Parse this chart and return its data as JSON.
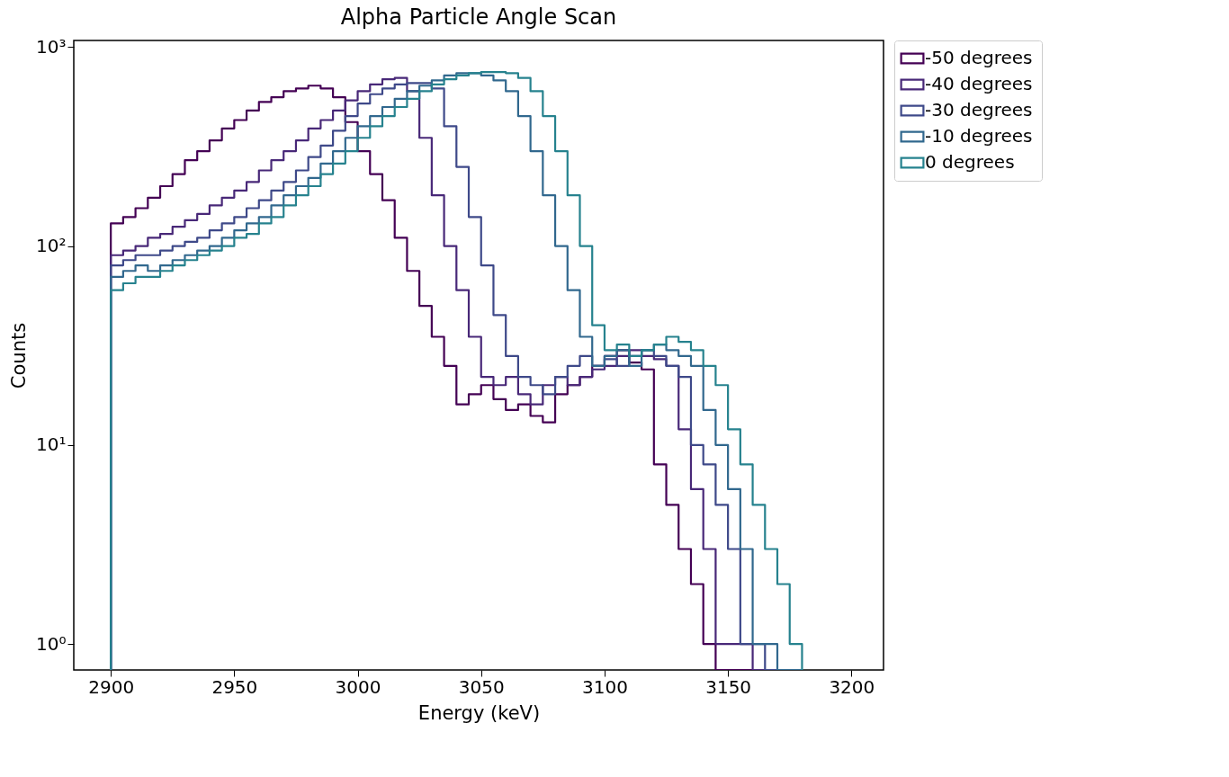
{
  "chart_data": {
    "type": "histogram",
    "title": "Alpha Particle Angle Scan",
    "xlabel": "Energy (keV)",
    "ylabel": "Counts",
    "bins": [
      2900,
      2905,
      2910,
      2915,
      2920,
      2925,
      2930,
      2935,
      2940,
      2945,
      2950,
      2955,
      2960,
      2965,
      2970,
      2975,
      2980,
      2985,
      2990,
      2995,
      3000,
      3005,
      3010,
      3015,
      3020,
      3025,
      3030,
      3035,
      3040,
      3045,
      3050,
      3055,
      3060,
      3065,
      3070,
      3075,
      3080,
      3085,
      3090,
      3095,
      3100,
      3105,
      3110,
      3115,
      3120,
      3125,
      3130,
      3135,
      3140,
      3145,
      3150,
      3155,
      3160,
      3165,
      3170,
      3175,
      3180
    ],
    "series": [
      {
        "name": "-50 degrees",
        "color": "#440154",
        "values": [
          130,
          140,
          155,
          175,
          200,
          230,
          270,
          300,
          340,
          390,
          430,
          480,
          530,
          560,
          600,
          620,
          640,
          620,
          560,
          420,
          300,
          230,
          170,
          110,
          75,
          50,
          35,
          25,
          16,
          18,
          20,
          17,
          15,
          16,
          14,
          13,
          18,
          20,
          22,
          25,
          28,
          30,
          26,
          24,
          8,
          5,
          3,
          2,
          1,
          null,
          null,
          null,
          null,
          null,
          null,
          null
        ]
      },
      {
        "name": "-40 degrees",
        "color": "#482878",
        "values": [
          90,
          95,
          100,
          110,
          115,
          125,
          135,
          145,
          160,
          175,
          190,
          210,
          240,
          270,
          300,
          340,
          390,
          430,
          480,
          540,
          600,
          650,
          690,
          700,
          600,
          350,
          180,
          100,
          60,
          35,
          22,
          20,
          22,
          18,
          16,
          20,
          22,
          20,
          22,
          24,
          25,
          28,
          30,
          28,
          27,
          25,
          12,
          6,
          3,
          1,
          1,
          1,
          null,
          null,
          null,
          null
        ]
      },
      {
        "name": "-30 degrees",
        "color": "#3e4989",
        "values": [
          80,
          85,
          90,
          90,
          95,
          100,
          105,
          110,
          120,
          130,
          140,
          155,
          170,
          190,
          210,
          240,
          280,
          320,
          380,
          450,
          520,
          580,
          620,
          650,
          660,
          660,
          620,
          400,
          250,
          140,
          80,
          45,
          28,
          22,
          20,
          18,
          22,
          25,
          28,
          25,
          27,
          25,
          28,
          30,
          28,
          25,
          22,
          10,
          8,
          5,
          3,
          1,
          1,
          null,
          null,
          null
        ]
      },
      {
        "name": "-10 degrees",
        "color": "#31688e",
        "values": [
          70,
          75,
          80,
          75,
          80,
          85,
          90,
          95,
          100,
          110,
          120,
          130,
          140,
          160,
          180,
          200,
          220,
          260,
          300,
          350,
          400,
          450,
          500,
          550,
          600,
          640,
          680,
          720,
          740,
          740,
          720,
          680,
          600,
          450,
          300,
          180,
          100,
          60,
          35,
          25,
          28,
          30,
          25,
          30,
          32,
          30,
          28,
          25,
          15,
          10,
          6,
          3,
          1,
          1,
          null,
          null
        ]
      },
      {
        "name": "0 degrees",
        "color": "#26828e",
        "values": [
          60,
          65,
          70,
          70,
          75,
          80,
          85,
          90,
          95,
          100,
          110,
          115,
          130,
          140,
          160,
          180,
          200,
          230,
          260,
          300,
          350,
          400,
          450,
          500,
          550,
          600,
          650,
          690,
          720,
          740,
          750,
          750,
          740,
          700,
          600,
          450,
          300,
          180,
          100,
          40,
          30,
          32,
          28,
          30,
          32,
          35,
          33,
          30,
          25,
          20,
          12,
          8,
          5,
          3,
          2,
          1
        ]
      }
    ],
    "xlim": [
      2885,
      3213
    ],
    "xticks": [
      2900,
      2950,
      3000,
      3050,
      3100,
      3150,
      3200
    ],
    "log": true,
    "ylim": [
      0.74,
      1080
    ],
    "yticks": [
      {
        "value": 1,
        "label": "10⁰"
      },
      {
        "value": 10,
        "label": "10¹"
      },
      {
        "value": 100,
        "label": "10²"
      },
      {
        "value": 1000,
        "label": "10³"
      }
    ],
    "grid": false,
    "legend": "right"
  }
}
